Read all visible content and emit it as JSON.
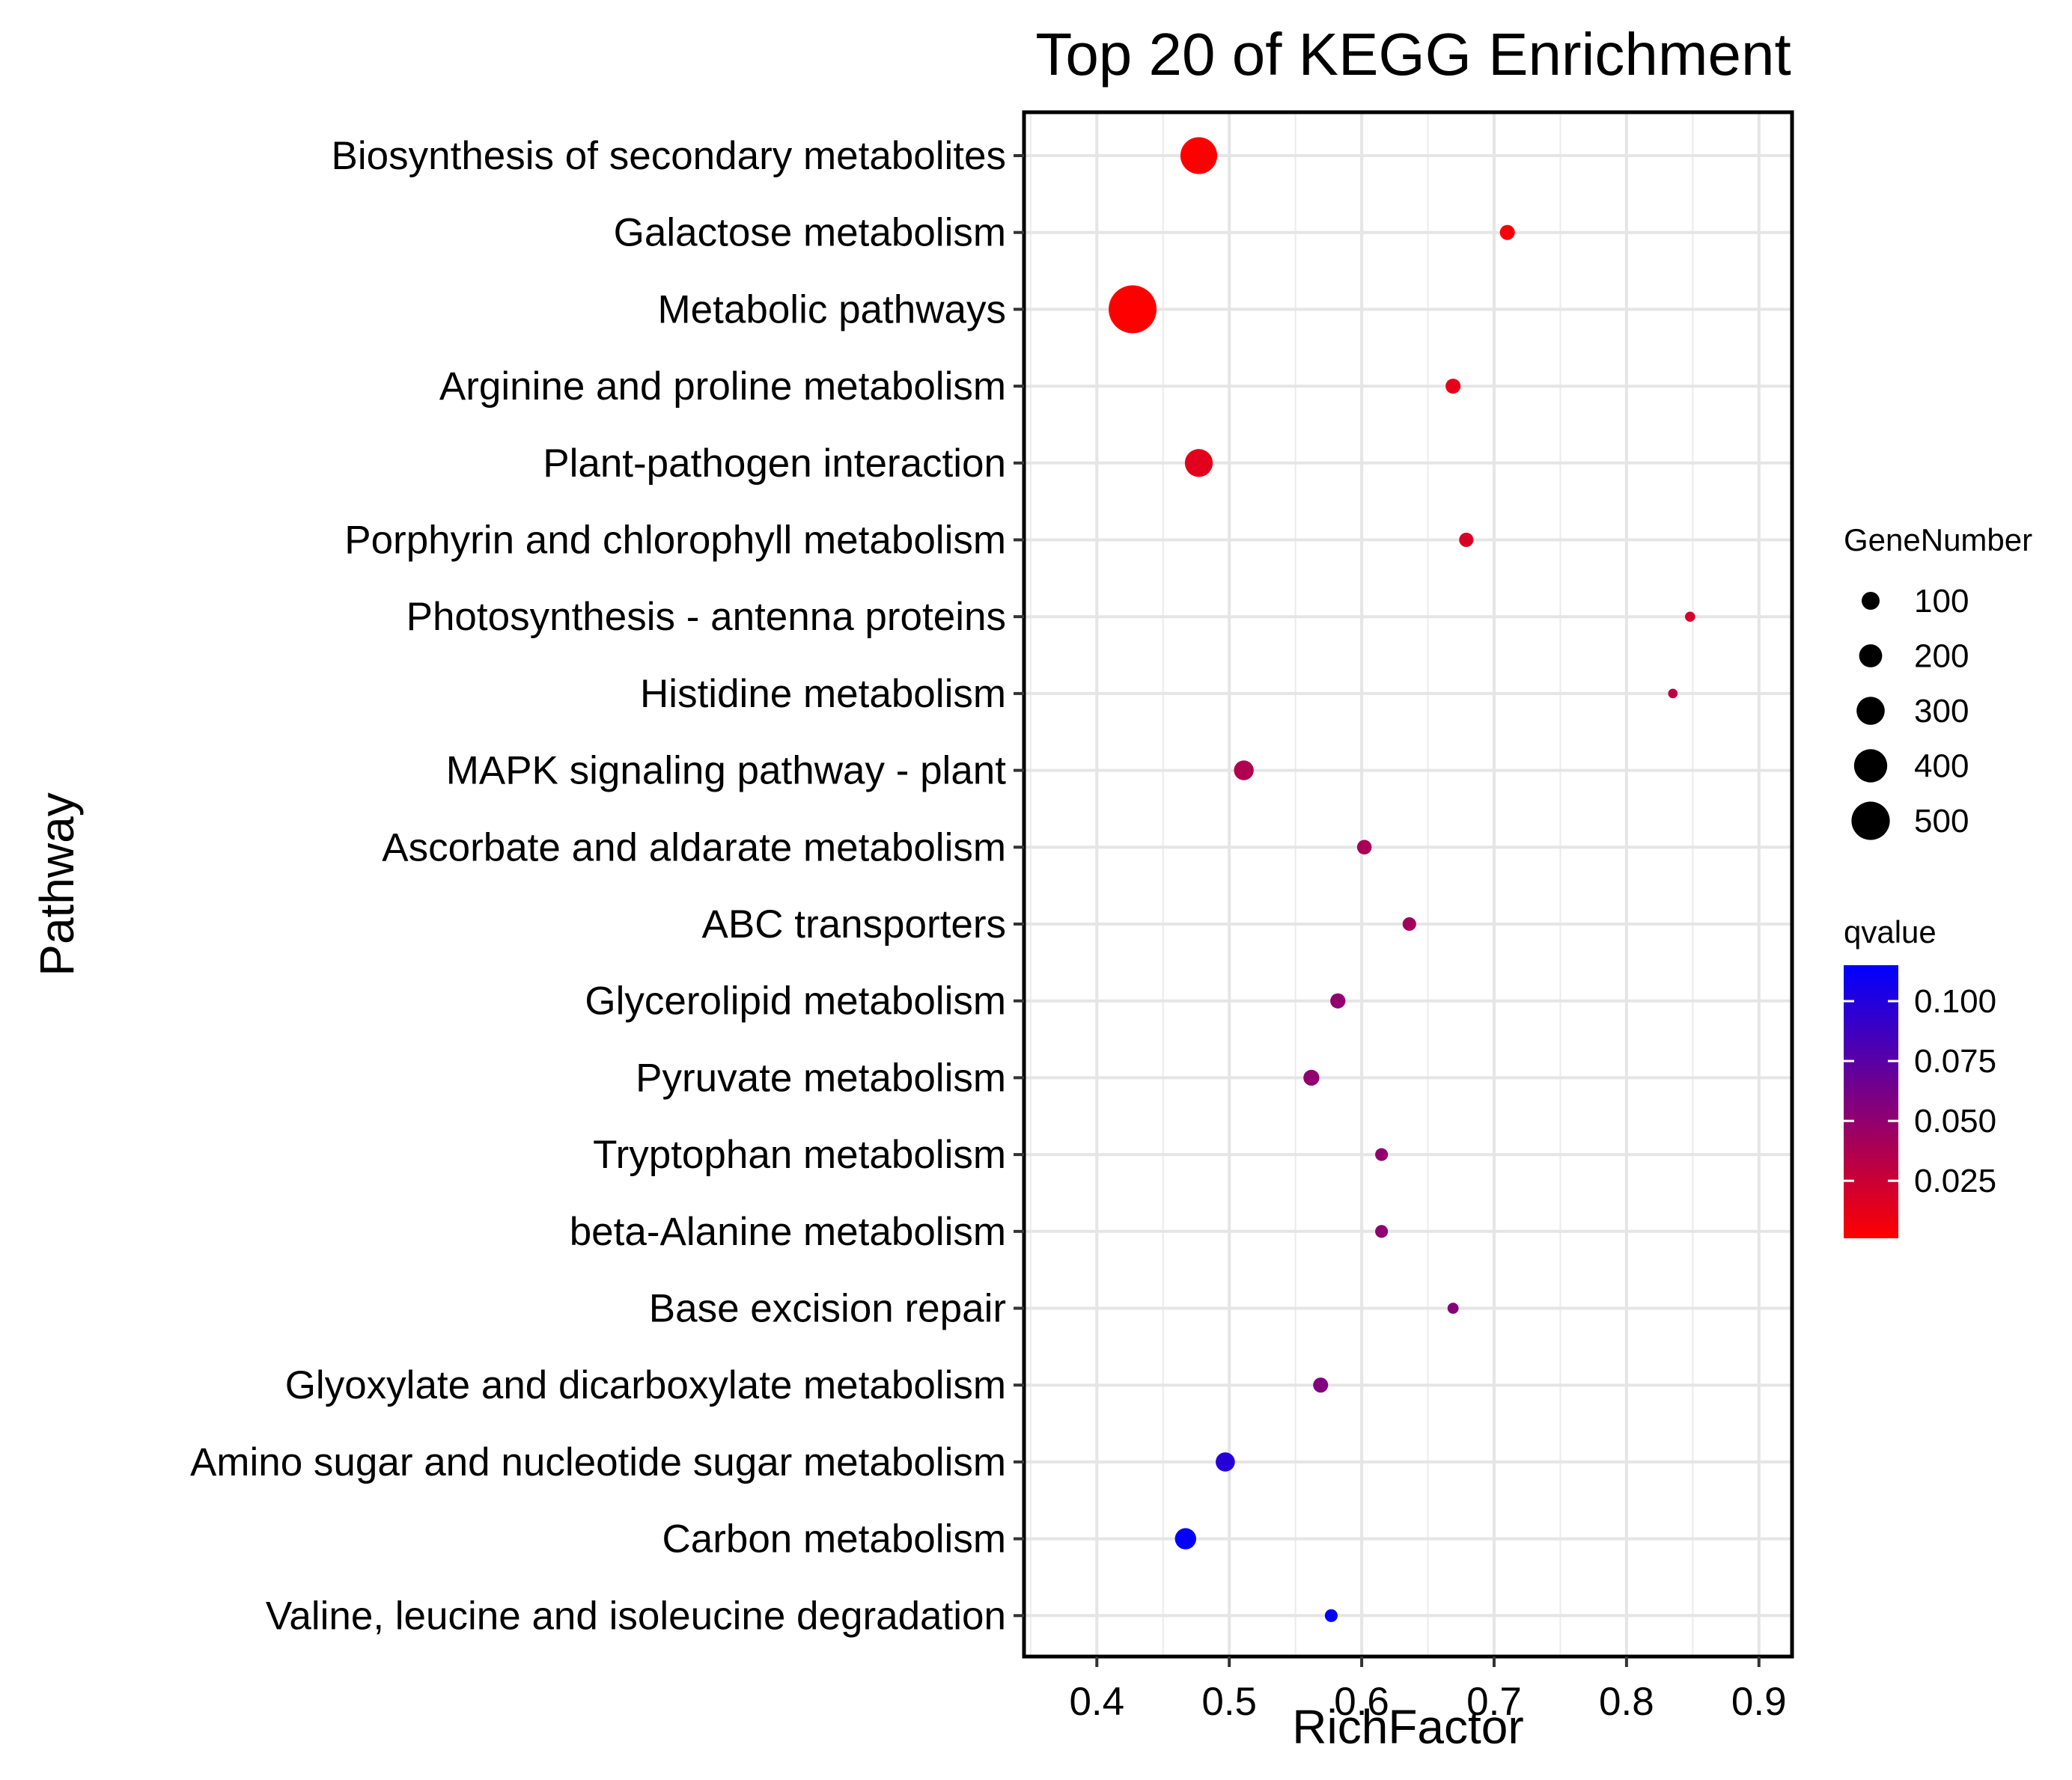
{
  "chart_data": {
    "type": "scatter",
    "title": "Top 20 of KEGG Enrichment",
    "xlabel": "RichFactor",
    "ylabel": "Pathway",
    "xlim": [
      0.345,
      0.925
    ],
    "xticks": [
      0.4,
      0.5,
      0.6,
      0.7,
      0.8,
      0.9
    ],
    "xtick_labels": [
      "0.4",
      "0.5",
      "0.6",
      "0.7",
      "0.8",
      "0.9"
    ],
    "grid": true,
    "legend_position": "right",
    "points": [
      {
        "pathway": "Biosynthesis of secondary metabolites",
        "rich_factor": 0.477,
        "gene_number": 330,
        "qvalue": 0.002
      },
      {
        "pathway": "Galactose metabolism",
        "rich_factor": 0.71,
        "gene_number": 55,
        "qvalue": 0.004
      },
      {
        "pathway": "Metabolic pathways",
        "rich_factor": 0.427,
        "gene_number": 560,
        "qvalue": 0.001
      },
      {
        "pathway": "Arginine and proline metabolism",
        "rich_factor": 0.669,
        "gene_number": 55,
        "qvalue": 0.012
      },
      {
        "pathway": "Plant-pathogen interaction",
        "rich_factor": 0.477,
        "gene_number": 190,
        "qvalue": 0.014
      },
      {
        "pathway": "Porphyrin and chlorophyll metabolism",
        "rich_factor": 0.679,
        "gene_number": 50,
        "qvalue": 0.018
      },
      {
        "pathway": "Photosynthesis - antenna proteins",
        "rich_factor": 0.848,
        "gene_number": 25,
        "qvalue": 0.02
      },
      {
        "pathway": "Histidine metabolism",
        "rich_factor": 0.835,
        "gene_number": 22,
        "qvalue": 0.03
      },
      {
        "pathway": "MAPK signaling pathway - plant",
        "rich_factor": 0.511,
        "gene_number": 95,
        "qvalue": 0.036
      },
      {
        "pathway": "Ascorbate and aldarate metabolism",
        "rich_factor": 0.602,
        "gene_number": 52,
        "qvalue": 0.04
      },
      {
        "pathway": "ABC transporters",
        "rich_factor": 0.636,
        "gene_number": 45,
        "qvalue": 0.042
      },
      {
        "pathway": "Glycerolipid metabolism",
        "rich_factor": 0.582,
        "gene_number": 56,
        "qvalue": 0.05
      },
      {
        "pathway": "Pyruvate metabolism",
        "rich_factor": 0.562,
        "gene_number": 62,
        "qvalue": 0.05
      },
      {
        "pathway": "Tryptophan metabolism",
        "rich_factor": 0.615,
        "gene_number": 40,
        "qvalue": 0.05
      },
      {
        "pathway": "beta-Alanine metabolism",
        "rich_factor": 0.615,
        "gene_number": 40,
        "qvalue": 0.052
      },
      {
        "pathway": "Base excision repair",
        "rich_factor": 0.669,
        "gene_number": 30,
        "qvalue": 0.055
      },
      {
        "pathway": "Glyoxylate and dicarboxylate metabolism",
        "rich_factor": 0.569,
        "gene_number": 55,
        "qvalue": 0.058
      },
      {
        "pathway": "Amino sugar and nucleotide sugar metabolism",
        "rich_factor": 0.497,
        "gene_number": 90,
        "qvalue": 0.098
      },
      {
        "pathway": "Carbon metabolism",
        "rich_factor": 0.467,
        "gene_number": 110,
        "qvalue": 0.113
      },
      {
        "pathway": "Valine, leucine and isoleucine degradation",
        "rich_factor": 0.577,
        "gene_number": 40,
        "qvalue": 0.113
      }
    ],
    "size_legend": {
      "title": "GeneNumber",
      "values": [
        100,
        200,
        300,
        400,
        500
      ],
      "labels": [
        "100",
        "200",
        "300",
        "400",
        "500"
      ]
    },
    "color_legend": {
      "title": "qvalue",
      "range": [
        0.001,
        0.115
      ],
      "ticks": [
        0.025,
        0.05,
        0.075,
        0.1
      ],
      "tick_labels": [
        "0.025",
        "0.050",
        "0.075",
        "0.100"
      ],
      "low_color": "#FF0000",
      "high_color": "#0000FF"
    }
  }
}
